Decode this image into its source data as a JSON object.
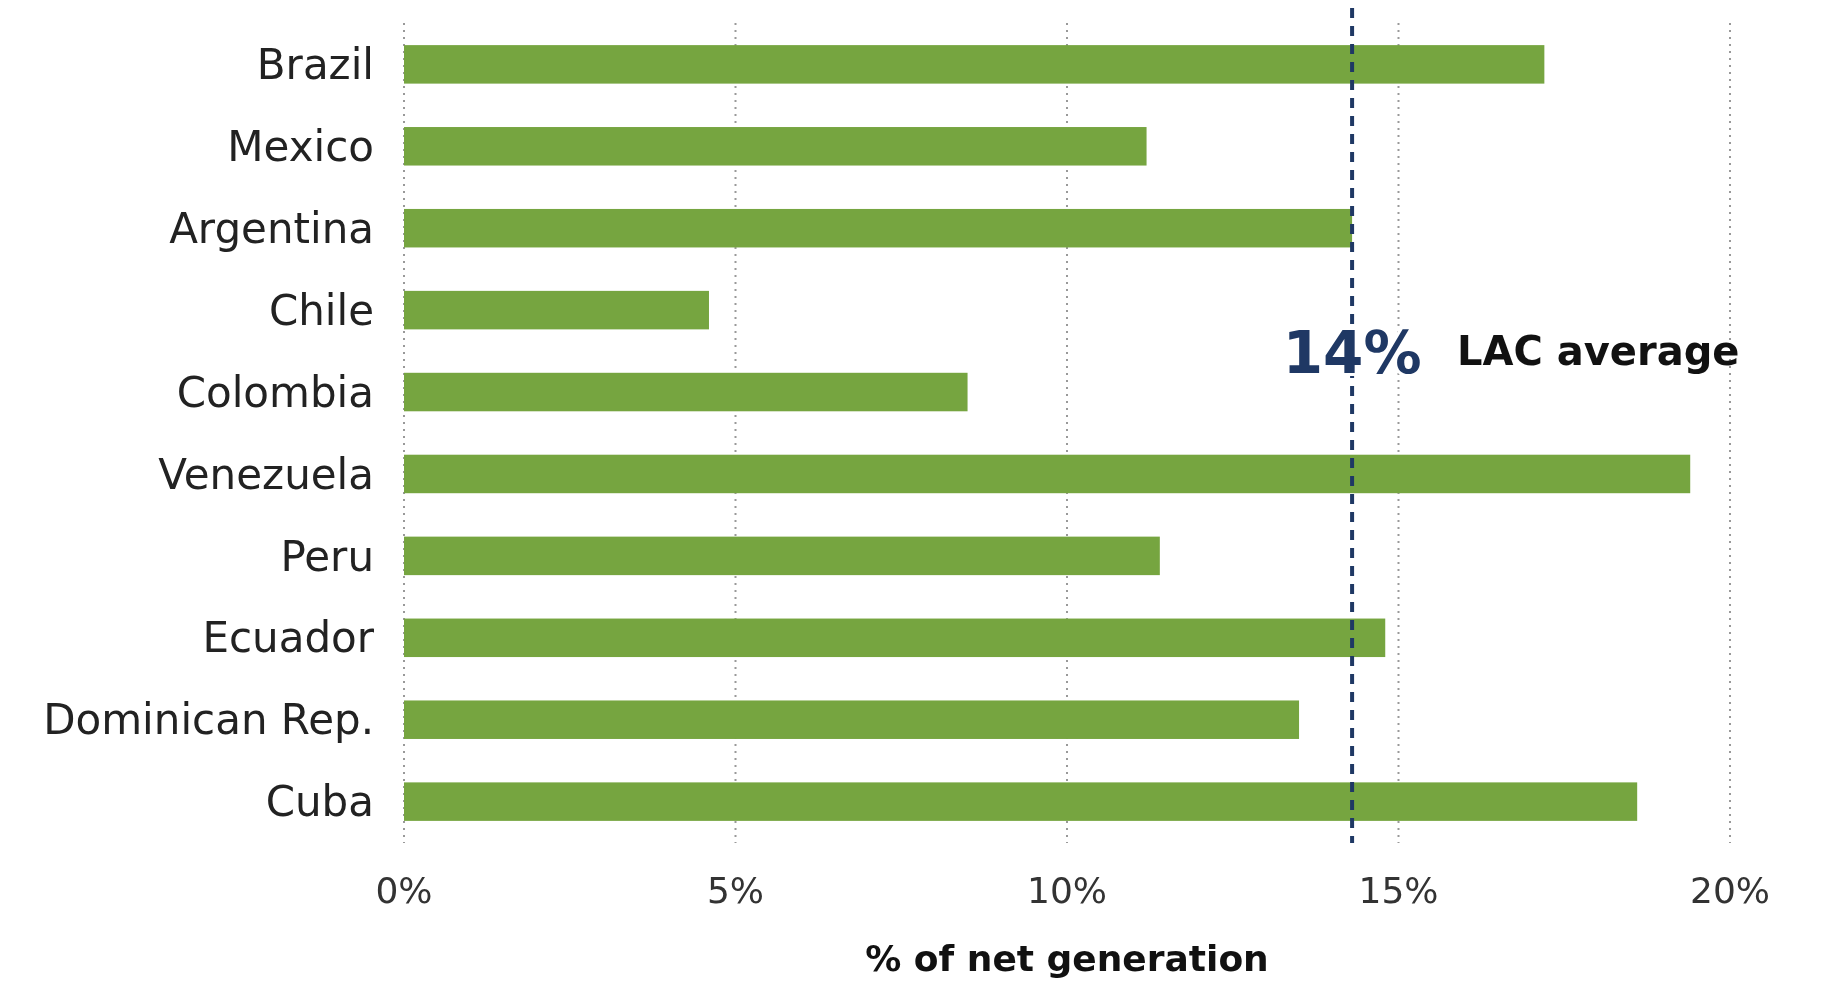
{
  "chart_data": {
    "type": "bar",
    "orientation": "horizontal",
    "xlabel": "% of net generation",
    "categories": [
      "Brazil",
      "Mexico",
      "Argentina",
      "Chile",
      "Colombia",
      "Venezuela",
      "Peru",
      "Ecuador",
      "Dominican Rep.",
      "Cuba"
    ],
    "values": [
      17.2,
      11.2,
      14.3,
      4.6,
      8.5,
      19.4,
      11.4,
      14.8,
      13.5,
      18.6
    ],
    "color": "#76a540",
    "xlim": [
      0,
      20
    ],
    "xticks": [
      {
        "value": 0,
        "label": "0%"
      },
      {
        "value": 5,
        "label": "5%"
      },
      {
        "value": 10,
        "label": "10%"
      },
      {
        "value": 15,
        "label": "15%"
      },
      {
        "value": 20,
        "label": "20%"
      }
    ],
    "grid": "x",
    "ref_lines": [
      {
        "axis": "x",
        "value": 14.3,
        "label": "LAC average",
        "color": "#1f3864",
        "line_style": "dashed"
      }
    ],
    "annotations": [
      {
        "text": "14%",
        "x": 14.3
      }
    ]
  }
}
